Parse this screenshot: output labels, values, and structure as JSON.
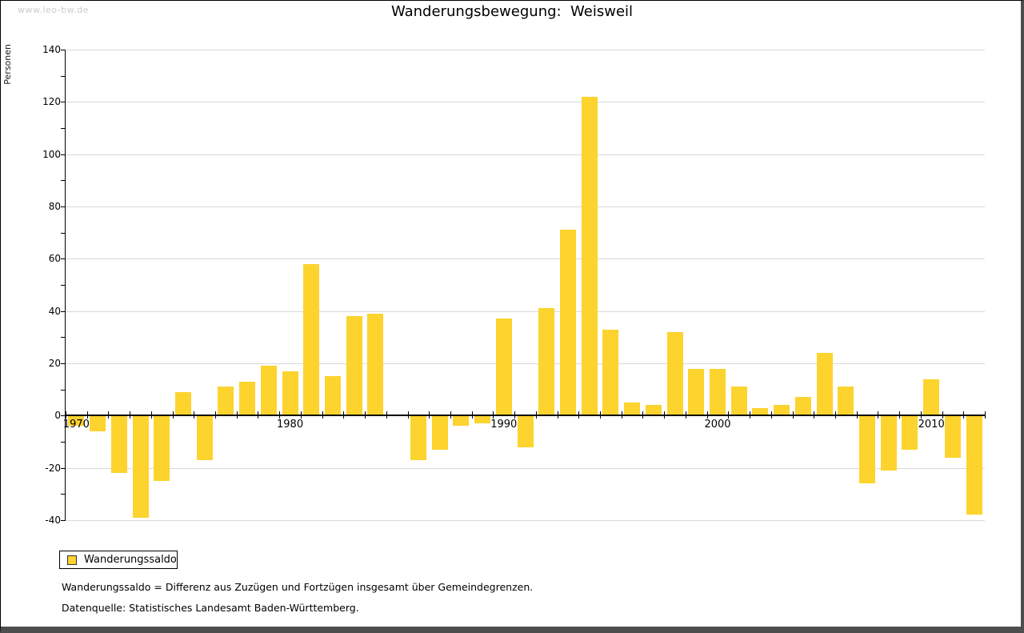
{
  "watermark": "www.leo-bw.de",
  "title": "Wanderungsbewegung:  Weisweil",
  "legend": {
    "label": "Wanderungssaldo",
    "swatch_color": "#fdd32e"
  },
  "footnotes": {
    "definition": "Wanderungssaldo = Differenz aus Zuzügen und Fortzügen insgesamt über Gemeindegrenzen.",
    "source": "Datenquelle: Statistisches Landesamt Baden-Württemberg."
  },
  "chart_data": {
    "type": "bar",
    "title": "Wanderungsbewegung: Weisweil",
    "xlabel": "",
    "ylabel": "Personen",
    "ylim": [
      -40,
      140
    ],
    "grid": true,
    "legend_position": "bottom-left",
    "bar_color": "#fdd32e",
    "gridline_color": "#d9d9d9",
    "y_ticks_major": [
      140,
      120,
      100,
      80,
      60,
      40,
      20,
      0,
      -20,
      -40
    ],
    "y_tick_minor_step": 10,
    "x_axis_labels": [
      "1970",
      "1980",
      "1990",
      "2000",
      "2010"
    ],
    "categories": [
      1970,
      1971,
      1972,
      1973,
      1974,
      1975,
      1976,
      1977,
      1978,
      1979,
      1980,
      1981,
      1982,
      1983,
      1984,
      1985,
      1986,
      1987,
      1988,
      1989,
      1990,
      1991,
      1992,
      1993,
      1994,
      1995,
      1996,
      1997,
      1998,
      1999,
      2000,
      2001,
      2002,
      2003,
      2004,
      2005,
      2006,
      2007,
      2008,
      2009,
      2010,
      2011,
      2012
    ],
    "series": [
      {
        "name": "Wanderungssaldo",
        "values": [
          -4,
          -6,
          -22,
          -39,
          -25,
          9,
          -17,
          11,
          13,
          19,
          17,
          58,
          15,
          38,
          39,
          0,
          -17,
          -13,
          -4,
          -3,
          37,
          -12,
          41,
          71,
          122,
          33,
          5,
          4,
          32,
          18,
          18,
          11,
          3,
          4,
          7,
          24,
          11,
          -26,
          -21,
          -13,
          14,
          -16,
          -38
        ]
      }
    ]
  }
}
